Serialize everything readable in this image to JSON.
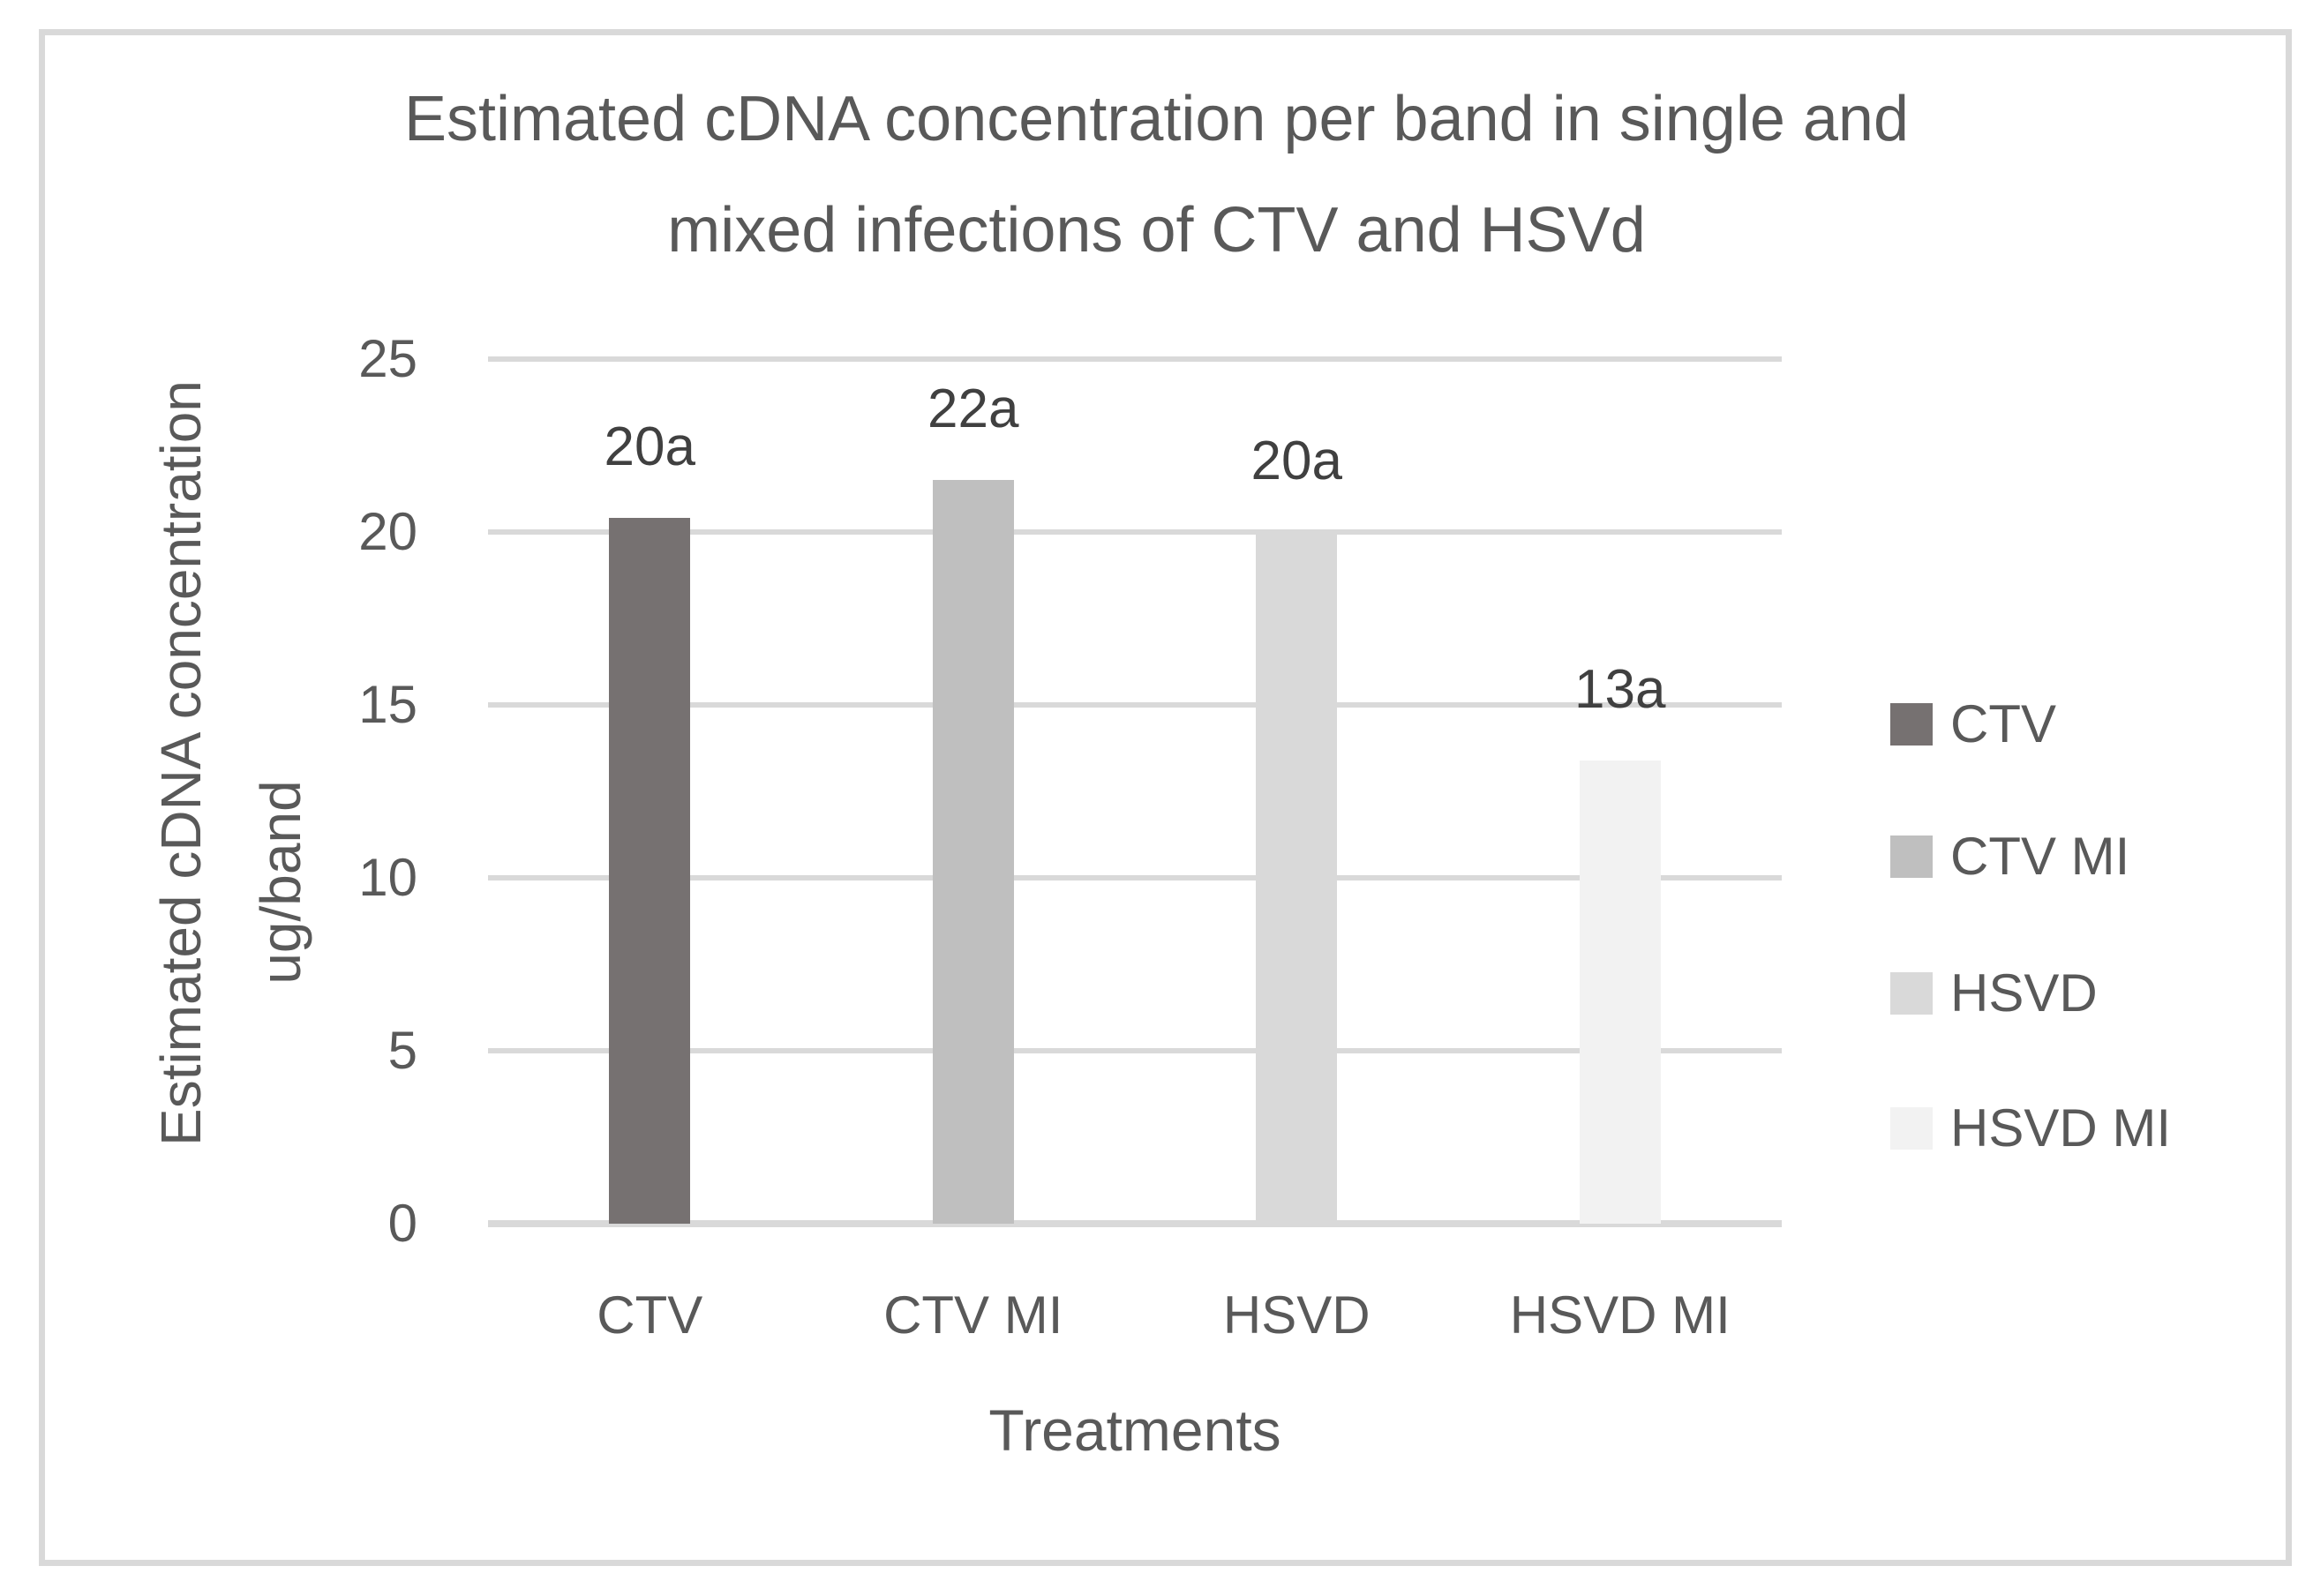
{
  "figure": {
    "background_color": "#ffffff",
    "border_color": "#d9d9d9"
  },
  "chart_data": {
    "type": "bar",
    "title": "Estimated cDNA concentration per band in single and mixed infections of CTV and HSVd",
    "title_lines": [
      "Estimated cDNA concentration per band in single and",
      "mixed infections of CTV and HSVd"
    ],
    "xlabel": "Treatments",
    "ylabel": "Estimated cDNA concentration ug/band",
    "ylabel_lines": [
      "Estimated cDNA concentration",
      "ug/band"
    ],
    "categories": [
      "CTV",
      "CTV MI",
      "HSVD",
      "HSVD MI"
    ],
    "values": [
      20.4,
      21.5,
      20.0,
      13.4
    ],
    "bar_labels": [
      "20a",
      "22a",
      "20a",
      "13a"
    ],
    "bar_colors": [
      "#767171",
      "#bfbfbf",
      "#d9d9d9",
      "#f2f2f2"
    ],
    "y_ticks": [
      0,
      5,
      10,
      15,
      20,
      25
    ],
    "ylim": [
      0,
      25
    ],
    "grid": true,
    "gridline_color": "#d9d9d9",
    "axis_text_color": "#595959",
    "value_label_color": "#404040",
    "legend": {
      "position": "right",
      "entries": [
        {
          "label": "CTV",
          "color": "#767171"
        },
        {
          "label": "CTV MI",
          "color": "#bfbfbf"
        },
        {
          "label": "HSVD",
          "color": "#d9d9d9"
        },
        {
          "label": "HSVD MI",
          "color": "#f2f2f2"
        }
      ]
    }
  }
}
